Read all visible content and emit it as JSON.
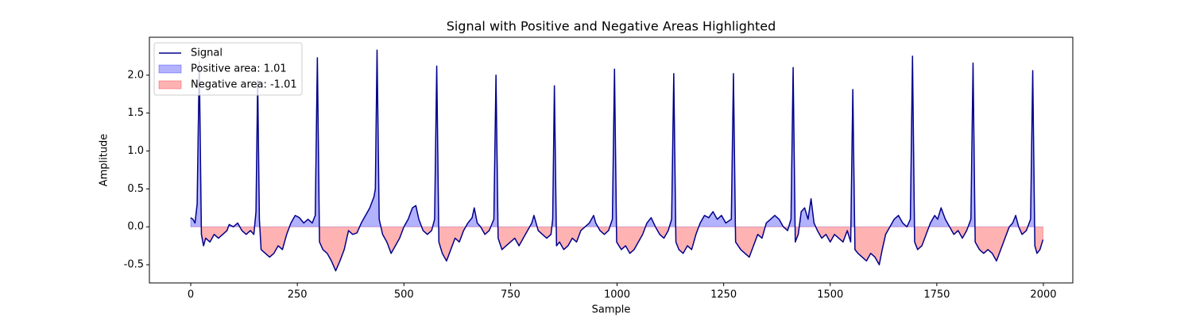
{
  "chart_data": {
    "type": "line",
    "title": "Signal with Positive and Negative Areas Highlighted",
    "xlabel": "Sample",
    "ylabel": "Amplitude",
    "xlim": [
      -97,
      2069
    ],
    "ylim": [
      -0.74,
      2.5
    ],
    "xticks": [
      0,
      250,
      500,
      750,
      1000,
      1250,
      1500,
      1750,
      2000
    ],
    "yticks": [
      -0.5,
      {
        "value": 0,
        "label": "0.0"
      },
      0.5,
      {
        "value": 1,
        "label": "1.0"
      },
      1.5,
      {
        "value": 2,
        "label": "2.0"
      }
    ],
    "legend": "upper left",
    "fills": [
      {
        "name": "Positive area: 1.01",
        "color": "#0000ff"
      },
      {
        "name": "Negative area: -1.01",
        "color": "#ff0000"
      }
    ],
    "x": [
      0,
      5,
      10,
      15,
      20,
      25,
      30,
      35,
      45,
      55,
      65,
      75,
      85,
      90,
      100,
      110,
      120,
      130,
      140,
      148,
      153,
      157,
      161,
      165,
      175,
      185,
      195,
      205,
      215,
      225,
      235,
      245,
      255,
      265,
      275,
      285,
      292,
      297,
      302,
      310,
      320,
      330,
      340,
      350,
      360,
      370,
      380,
      390,
      400,
      410,
      420,
      430,
      433,
      437,
      442,
      450,
      460,
      470,
      480,
      490,
      500,
      510,
      520,
      528,
      535,
      545,
      555,
      565,
      572,
      577,
      582,
      590,
      600,
      610,
      620,
      630,
      640,
      650,
      660,
      665,
      672,
      680,
      690,
      700,
      711,
      716,
      721,
      730,
      740,
      750,
      760,
      770,
      780,
      790,
      800,
      805,
      815,
      825,
      835,
      845,
      849,
      853,
      858,
      865,
      875,
      885,
      895,
      905,
      915,
      925,
      935,
      945,
      950,
      960,
      970,
      980,
      989,
      994,
      999,
      1010,
      1020,
      1030,
      1040,
      1050,
      1060,
      1070,
      1080,
      1090,
      1100,
      1110,
      1120,
      1128,
      1133,
      1138,
      1145,
      1155,
      1165,
      1175,
      1185,
      1195,
      1205,
      1215,
      1225,
      1235,
      1245,
      1255,
      1268,
      1273,
      1278,
      1290,
      1300,
      1310,
      1320,
      1330,
      1340,
      1350,
      1360,
      1370,
      1380,
      1390,
      1400,
      1408,
      1413,
      1418,
      1425,
      1432,
      1440,
      1448,
      1455,
      1462,
      1470,
      1480,
      1490,
      1500,
      1510,
      1520,
      1530,
      1540,
      1548,
      1553,
      1558,
      1565,
      1575,
      1585,
      1595,
      1605,
      1615,
      1622,
      1630,
      1640,
      1650,
      1660,
      1670,
      1680,
      1688,
      1693,
      1698,
      1705,
      1715,
      1725,
      1735,
      1745,
      1752,
      1760,
      1770,
      1780,
      1790,
      1800,
      1810,
      1820,
      1830,
      1835,
      1840,
      1850,
      1860,
      1870,
      1880,
      1890,
      1900,
      1910,
      1920,
      1928,
      1935,
      1942,
      1950,
      1960,
      1970,
      1975,
      1980,
      1985,
      1992,
      1999
    ],
    "series": [
      {
        "name": "Signal",
        "color": "#00008b",
        "values": [
          0.12,
          0.1,
          0.05,
          0.3,
          2.18,
          -0.1,
          -0.25,
          -0.15,
          -0.2,
          -0.1,
          -0.15,
          -0.1,
          -0.05,
          0.03,
          0.0,
          0.05,
          -0.05,
          -0.1,
          -0.05,
          -0.1,
          0.2,
          1.93,
          0.1,
          -0.3,
          -0.35,
          -0.4,
          -0.35,
          -0.25,
          -0.3,
          -0.1,
          0.05,
          0.15,
          0.12,
          0.05,
          0.1,
          0.05,
          0.15,
          2.23,
          -0.2,
          -0.3,
          -0.35,
          -0.45,
          -0.58,
          -0.45,
          -0.3,
          -0.05,
          -0.1,
          -0.08,
          0.05,
          0.15,
          0.25,
          0.4,
          0.5,
          2.33,
          0.1,
          -0.1,
          -0.2,
          -0.35,
          -0.25,
          -0.15,
          0.0,
          0.1,
          0.25,
          0.28,
          0.1,
          -0.05,
          -0.1,
          -0.05,
          0.1,
          2.12,
          -0.2,
          -0.35,
          -0.45,
          -0.3,
          -0.15,
          -0.2,
          -0.05,
          0.05,
          0.12,
          0.25,
          0.05,
          0.0,
          -0.1,
          -0.05,
          0.1,
          2.0,
          -0.15,
          -0.3,
          -0.25,
          -0.2,
          -0.15,
          -0.25,
          -0.15,
          -0.05,
          0.05,
          0.15,
          -0.05,
          -0.1,
          -0.15,
          -0.1,
          0.1,
          1.86,
          -0.25,
          -0.2,
          -0.3,
          -0.25,
          -0.15,
          -0.2,
          -0.05,
          0.0,
          0.05,
          0.15,
          0.05,
          -0.05,
          -0.1,
          -0.05,
          0.1,
          2.08,
          -0.2,
          -0.3,
          -0.25,
          -0.35,
          -0.3,
          -0.2,
          -0.1,
          0.05,
          0.12,
          0.0,
          -0.1,
          -0.15,
          -0.05,
          0.1,
          2.02,
          -0.2,
          -0.3,
          -0.35,
          -0.25,
          -0.3,
          -0.1,
          0.05,
          0.15,
          0.12,
          0.2,
          0.1,
          0.15,
          0.05,
          0.1,
          2.02,
          -0.2,
          -0.3,
          -0.35,
          -0.4,
          -0.25,
          -0.1,
          -0.15,
          0.05,
          0.1,
          0.15,
          0.1,
          0.0,
          -0.05,
          0.1,
          2.1,
          -0.2,
          -0.1,
          0.2,
          0.25,
          0.1,
          0.37,
          0.05,
          -0.05,
          -0.15,
          -0.1,
          -0.2,
          -0.1,
          -0.15,
          -0.2,
          -0.05,
          -0.2,
          1.81,
          -0.3,
          -0.35,
          -0.4,
          -0.45,
          -0.35,
          -0.4,
          -0.5,
          -0.3,
          -0.1,
          0.0,
          0.1,
          0.15,
          0.05,
          0.0,
          0.1,
          2.25,
          -0.2,
          -0.3,
          -0.25,
          -0.1,
          0.05,
          0.15,
          0.1,
          0.25,
          0.1,
          0.0,
          -0.1,
          -0.05,
          -0.15,
          -0.05,
          0.1,
          2.16,
          -0.2,
          -0.3,
          -0.35,
          -0.3,
          -0.35,
          -0.45,
          -0.3,
          -0.15,
          0.0,
          0.05,
          0.15,
          0.0,
          -0.1,
          -0.05,
          0.1,
          2.06,
          -0.25,
          -0.35,
          -0.3,
          -0.17
        ]
      }
    ]
  }
}
